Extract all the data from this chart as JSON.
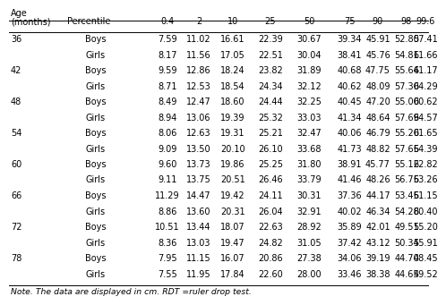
{
  "col_headers": [
    "Age\n(months)",
    "Percentile",
    "0.4",
    "2",
    "10",
    "25",
    "50",
    "75",
    "90",
    "98",
    "99.6"
  ],
  "rows": [
    {
      "age": "36",
      "sex": "Boys",
      "vals": [
        "7.59",
        "11.02",
        "16.61",
        "22.39",
        "30.67",
        "39.34",
        "45.91",
        "52.80",
        "57.41"
      ]
    },
    {
      "age": "",
      "sex": "Girls",
      "vals": [
        "8.17",
        "11.56",
        "17.05",
        "22.51",
        "30.04",
        "38.41",
        "45.76",
        "54.81",
        "61.66"
      ]
    },
    {
      "age": "42",
      "sex": "Boys",
      "vals": [
        "9.59",
        "12.86",
        "18.24",
        "23.82",
        "31.89",
        "40.68",
        "47.75",
        "55.64",
        "61.17"
      ]
    },
    {
      "age": "",
      "sex": "Girls",
      "vals": [
        "8.71",
        "12.53",
        "18.54",
        "24.34",
        "32.12",
        "40.62",
        "48.09",
        "57.30",
        "64.29"
      ]
    },
    {
      "age": "48",
      "sex": "Boys",
      "vals": [
        "8.49",
        "12.47",
        "18.60",
        "24.44",
        "32.25",
        "40.45",
        "47.20",
        "55.00",
        "60.62"
      ]
    },
    {
      "age": "",
      "sex": "Girls",
      "vals": [
        "8.94",
        "13.06",
        "19.39",
        "25.32",
        "33.03",
        "41.34",
        "48.64",
        "57.69",
        "64.57"
      ]
    },
    {
      "age": "54",
      "sex": "Boys",
      "vals": [
        "8.06",
        "12.63",
        "19.31",
        "25.21",
        "32.47",
        "40.06",
        "46.79",
        "55.20",
        "61.65"
      ]
    },
    {
      "age": "",
      "sex": "Girls",
      "vals": [
        "9.09",
        "13.50",
        "20.10",
        "26.10",
        "33.68",
        "41.73",
        "48.82",
        "57.65",
        "64.39"
      ]
    },
    {
      "age": "60",
      "sex": "Boys",
      "vals": [
        "9.60",
        "13.73",
        "19.86",
        "25.25",
        "31.80",
        "38.91",
        "45.77",
        "55.12",
        "62.82"
      ]
    },
    {
      "age": "",
      "sex": "Girls",
      "vals": [
        "9.11",
        "13.75",
        "20.51",
        "26.46",
        "33.79",
        "41.46",
        "48.26",
        "56.75",
        "63.26"
      ]
    },
    {
      "age": "66",
      "sex": "Boys",
      "vals": [
        "11.29",
        "14.47",
        "19.42",
        "24.11",
        "30.31",
        "37.36",
        "44.17",
        "53.45",
        "61.15"
      ]
    },
    {
      "age": "",
      "sex": "Girls",
      "vals": [
        "8.86",
        "13.60",
        "20.31",
        "26.04",
        "32.91",
        "40.02",
        "46.34",
        "54.28",
        "60.40"
      ]
    },
    {
      "age": "72",
      "sex": "Boys",
      "vals": [
        "10.51",
        "13.44",
        "18.07",
        "22.63",
        "28.92",
        "35.89",
        "42.01",
        "49.51",
        "55.20"
      ]
    },
    {
      "age": "",
      "sex": "Girls",
      "vals": [
        "8.36",
        "13.03",
        "19.47",
        "24.82",
        "31.05",
        "37.42",
        "43.12",
        "50.34",
        "55.91"
      ]
    },
    {
      "age": "78",
      "sex": "Boys",
      "vals": [
        "7.95",
        "11.15",
        "16.07",
        "20.86",
        "27.38",
        "34.06",
        "39.19",
        "44.70",
        "48.45"
      ]
    },
    {
      "age": "",
      "sex": "Girls",
      "vals": [
        "7.55",
        "11.95",
        "17.84",
        "22.60",
        "28.00",
        "33.46",
        "38.38",
        "44.65",
        "49.52"
      ]
    }
  ],
  "note": "Note. The data are displayed in cm. RDT =ruler drop test.",
  "bg_color": "#ffffff",
  "text_color": "#000000",
  "font_size": 7.0
}
